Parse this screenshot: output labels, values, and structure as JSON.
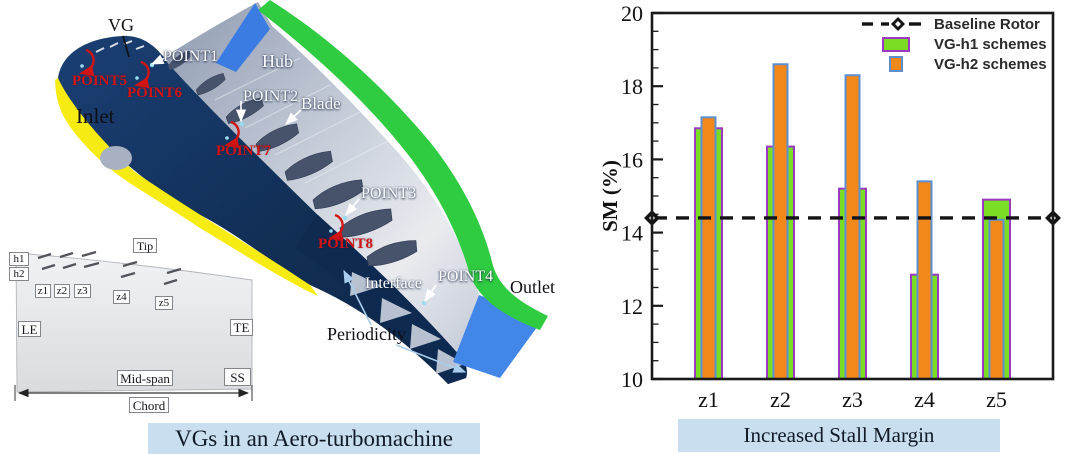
{
  "captions": {
    "left": "VGs in an Aero-turbomachine",
    "right": "Increased Stall Margin"
  },
  "diagram": {
    "labels": {
      "vg": "VG",
      "inlet": "Inlet",
      "hub": "Hub",
      "blade": "Blade",
      "outlet": "Outlet",
      "interface": "Interface",
      "periodicity": "Periodicity",
      "point1": "POINT1",
      "point2": "POINT2",
      "point3": "POINT3",
      "point4": "POINT4",
      "point5": "POINT5",
      "point6": "POINT6",
      "point7": "POINT7",
      "point8": "POINT8"
    },
    "inset": {
      "tip": "Tip",
      "h1": "h1",
      "h2": "h2",
      "z1": "z1",
      "z2": "z2",
      "z3": "z3",
      "z4": "z4",
      "z5": "z5",
      "le": "LE",
      "te": "TE",
      "mid_span": "Mid-span",
      "ss": "SS",
      "chord": "Chord"
    }
  },
  "chart_data": {
    "type": "bar",
    "title": "Increased Stall Margin",
    "ylabel": "SM (%)",
    "categories": [
      "z1",
      "z2",
      "z3",
      "z4",
      "z5"
    ],
    "series": [
      {
        "name": "VG-h1 schemes",
        "values": [
          16.85,
          16.35,
          15.2,
          12.85,
          14.9
        ],
        "fill": "#7bdc26",
        "border": "#9a3ac2"
      },
      {
        "name": "VG-h2 schemes",
        "values": [
          17.15,
          18.6,
          18.3,
          15.4,
          14.35
        ],
        "fill": "#f2871a",
        "border": "#5c90d2"
      }
    ],
    "baseline": {
      "name": "Baseline Rotor",
      "value": 14.4,
      "color": "#141414"
    },
    "ylim": [
      10,
      20
    ],
    "ytick_step": 2,
    "yminor_step": 0.5,
    "grid": false,
    "legend_position": "top-right"
  },
  "colors": {
    "caption_bg": "#c9dff0",
    "inlet_yellow": "#f6ec13",
    "casing_green": "#2fcb40",
    "hub_face_blue": "#3a7ce2",
    "outlet_blue": "#4286e8",
    "passage_navy": "#16365f",
    "baseline_black": "#141414"
  }
}
